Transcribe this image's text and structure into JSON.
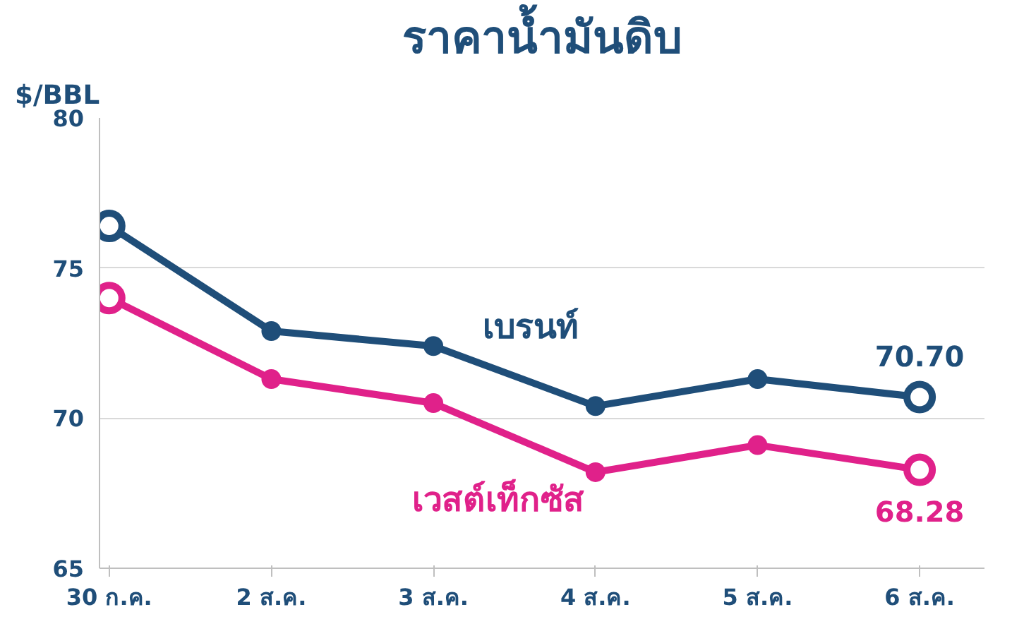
{
  "chart_data": {
    "type": "line",
    "title": "ราคาน้ำมันดิบ",
    "ylabel": "$/BBL",
    "categories": [
      "30 ก.ค.",
      "2 ส.ค.",
      "3 ส.ค.",
      "4 ส.ค.",
      "5 ส.ค.",
      "6 ส.ค."
    ],
    "series": [
      {
        "name": "เบรนท์",
        "color": "#1f4e79",
        "values": [
          76.4,
          72.9,
          72.4,
          70.4,
          71.3,
          70.7
        ],
        "value_labels": [
          null,
          null,
          null,
          null,
          null,
          "70.70"
        ]
      },
      {
        "name": "เวสต์เท็กซัส",
        "color": "#e0218a",
        "values": [
          74.0,
          71.3,
          70.5,
          68.2,
          69.1,
          68.28
        ],
        "value_labels": [
          null,
          null,
          null,
          null,
          null,
          "68.28"
        ]
      }
    ],
    "ylim": [
      65,
      80
    ],
    "yticks": [
      65,
      70,
      75,
      80
    ],
    "grid": "y",
    "marker": "circle",
    "line_style": "solid"
  }
}
